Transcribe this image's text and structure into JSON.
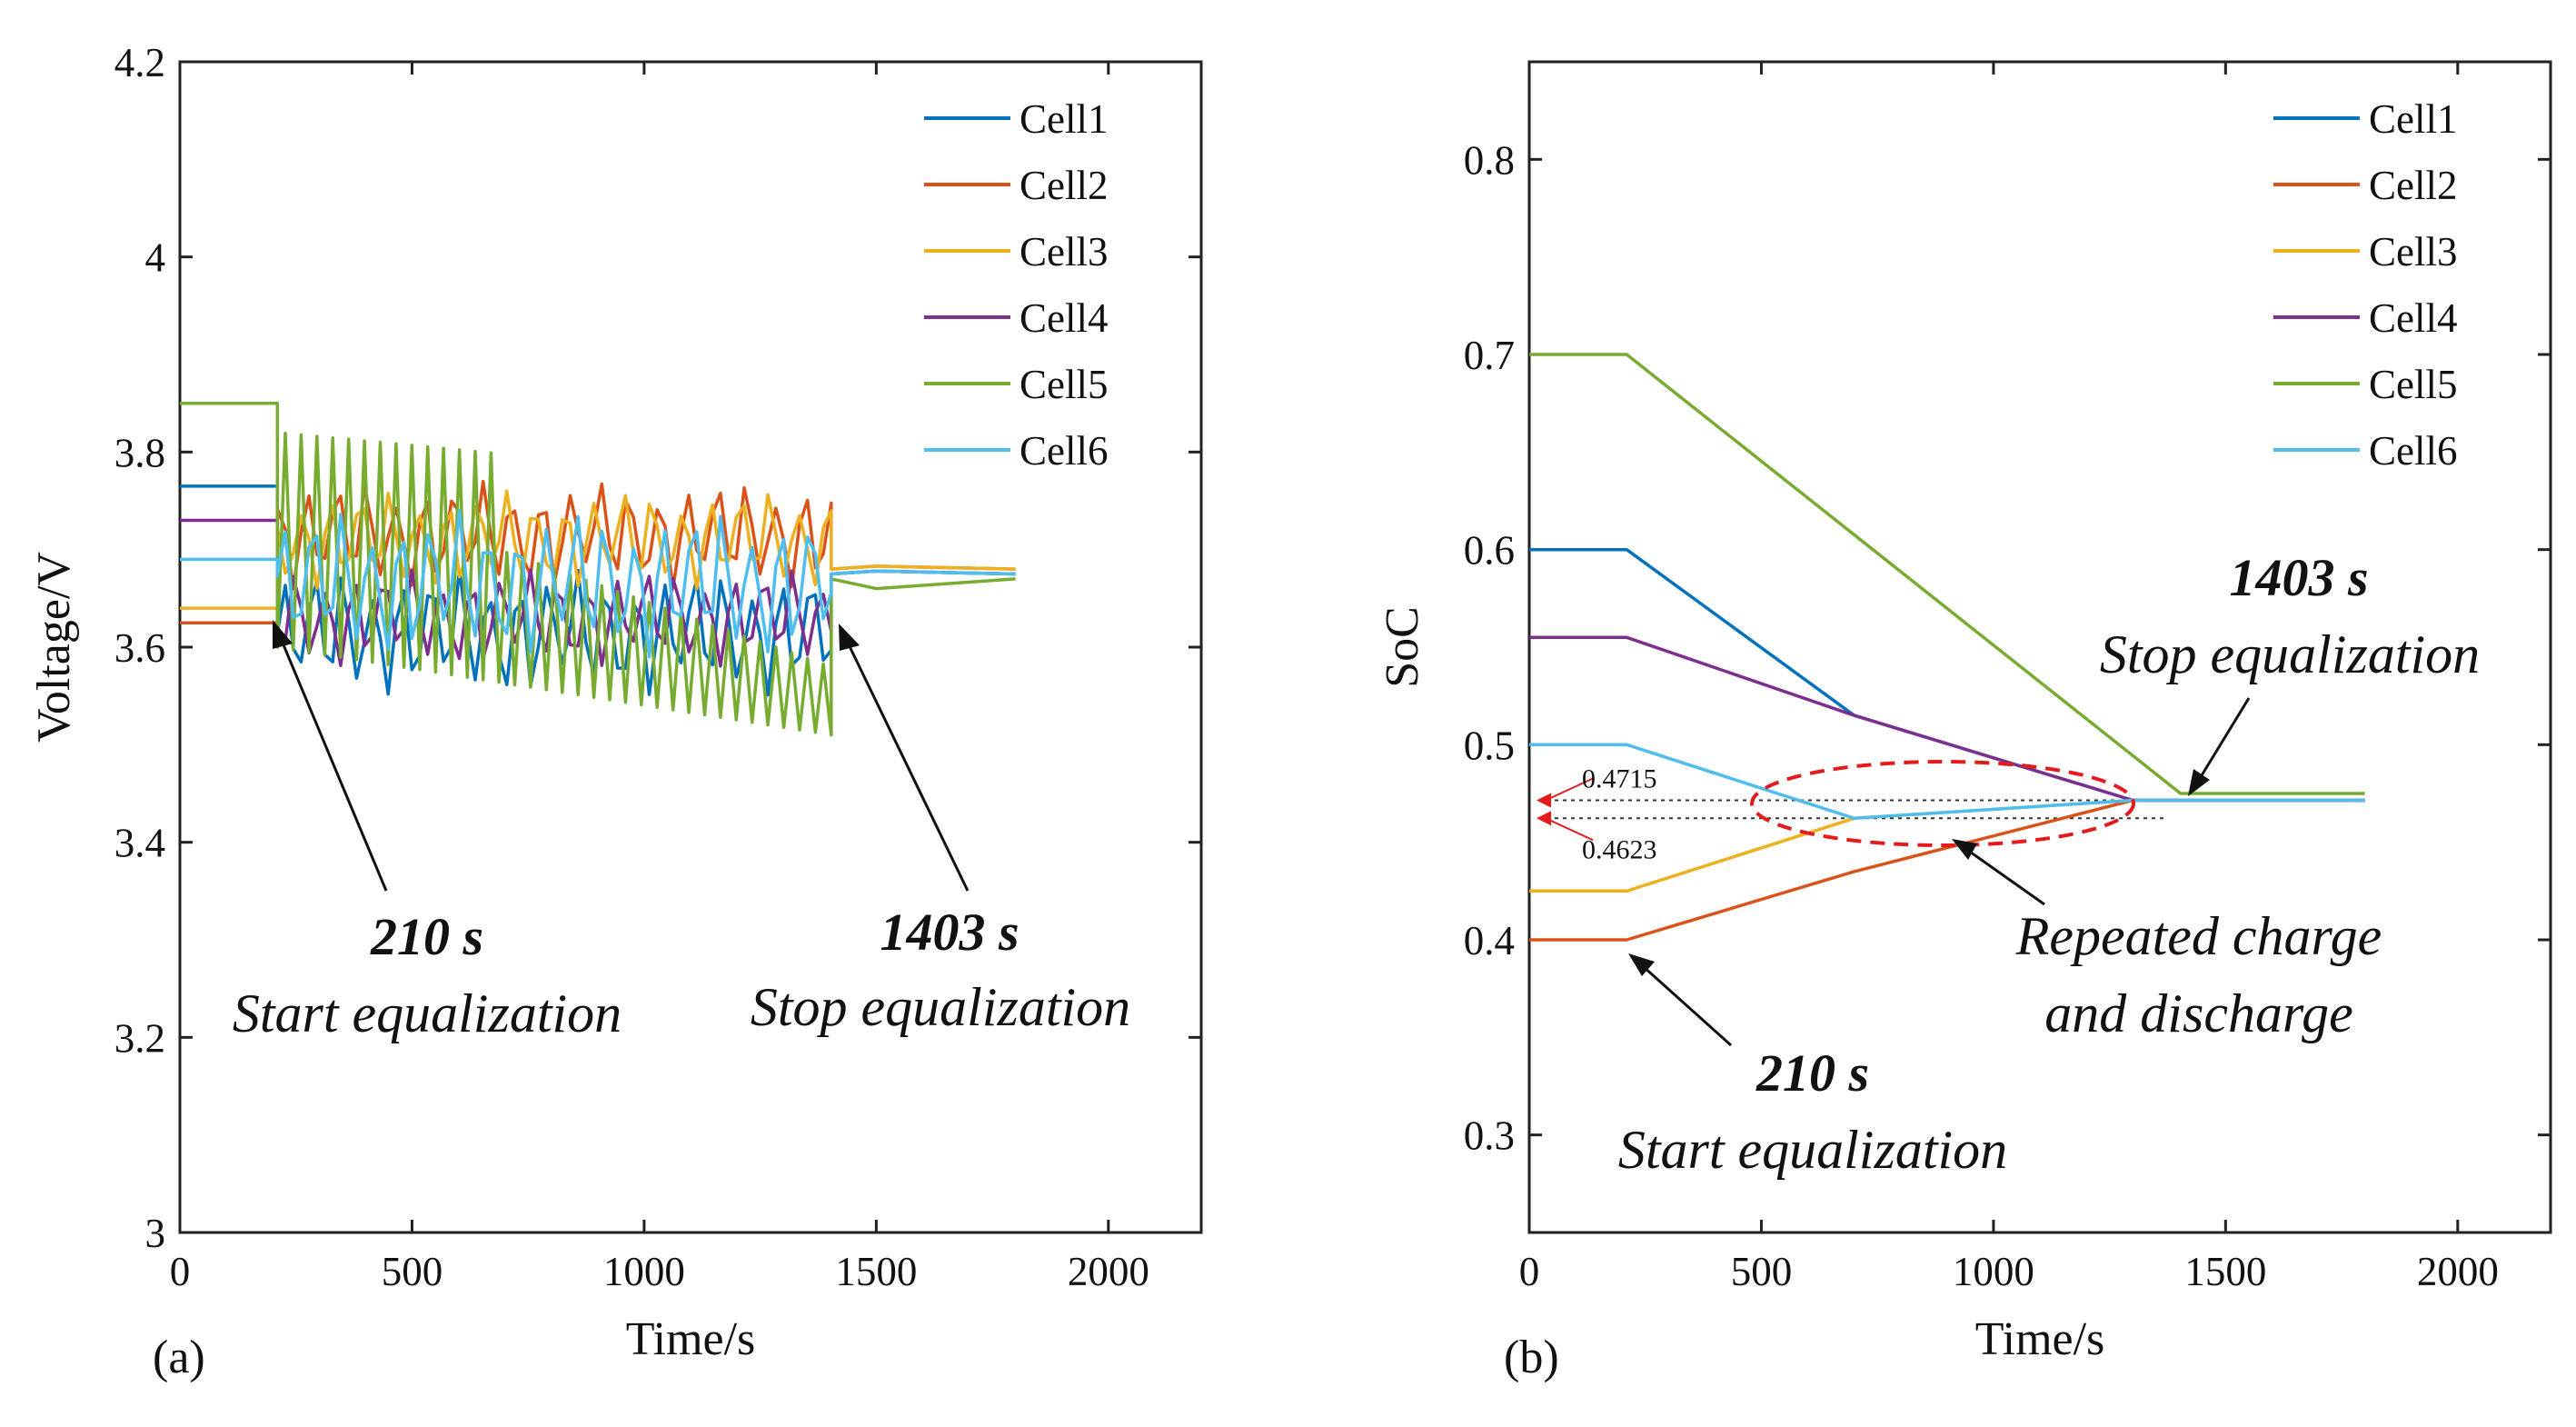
{
  "figure": {
    "panel_a_label": "(a)",
    "panel_b_label": "(b)"
  },
  "colors": {
    "Cell1": "#0072BD",
    "Cell2": "#D95319",
    "Cell3": "#EDB120",
    "Cell4": "#7E2F8E",
    "Cell5": "#77AC30",
    "Cell6": "#4DBEEE",
    "marker": "#E41A1C"
  },
  "chart_data": [
    {
      "type": "line",
      "title": "",
      "xlabel": "Time/s",
      "ylabel": "Voltage/V",
      "xlim": [
        0,
        2200
      ],
      "ylim": [
        3,
        4.2
      ],
      "xticks": [
        0,
        500,
        1000,
        1500,
        2000
      ],
      "yticks": [
        3,
        3.2,
        3.4,
        3.6,
        3.8,
        4,
        4.2
      ],
      "xtick_labels": [
        "0",
        "500",
        "1000",
        "1500",
        "2000"
      ],
      "ytick_labels": [
        "3",
        "3.2",
        "3.4",
        "3.6",
        "3.8",
        "4",
        "4.2"
      ],
      "legend": [
        "Cell1",
        "Cell2",
        "Cell3",
        "Cell4",
        "Cell5",
        "Cell6"
      ],
      "legend_position": "top-right",
      "series": [
        {
          "name": "Cell1",
          "start_value": 3.765,
          "end_value": 3.675,
          "oscillation_range": [
            3.55,
            3.68
          ]
        },
        {
          "name": "Cell2",
          "start_value": 3.625,
          "end_value": 3.68,
          "oscillation_range": [
            3.66,
            3.77
          ]
        },
        {
          "name": "Cell3",
          "start_value": 3.64,
          "end_value": 3.68,
          "oscillation_range": [
            3.66,
            3.76
          ]
        },
        {
          "name": "Cell4",
          "start_value": 3.73,
          "end_value": 3.675,
          "oscillation_range": [
            3.58,
            3.68
          ]
        },
        {
          "name": "Cell5",
          "start_value": 3.85,
          "end_value": 3.67,
          "oscillation_range": [
            3.46,
            3.82
          ]
        },
        {
          "name": "Cell6",
          "start_value": 3.69,
          "end_value": 3.675,
          "oscillation_range": [
            3.59,
            3.74
          ]
        }
      ],
      "annotations": {
        "start_time": "210 s",
        "start_text": "Start equalization",
        "stop_time": "1403 s",
        "stop_text": "Stop equalization"
      }
    },
    {
      "type": "line",
      "title": "",
      "xlabel": "Time/s",
      "ylabel": "SoC",
      "xlim": [
        0,
        2200
      ],
      "ylim": [
        0.25,
        0.85
      ],
      "xticks": [
        0,
        500,
        1000,
        1500,
        2000
      ],
      "yticks": [
        0.3,
        0.4,
        0.5,
        0.6,
        0.7,
        0.8
      ],
      "xtick_labels": [
        "0",
        "500",
        "1000",
        "1500",
        "2000"
      ],
      "ytick_labels": [
        "0.3",
        "0.4",
        "0.5",
        "0.6",
        "0.7",
        "0.8"
      ],
      "legend": [
        "Cell1",
        "Cell2",
        "Cell3",
        "Cell4",
        "Cell5",
        "Cell6"
      ],
      "legend_position": "top-right",
      "series": [
        {
          "name": "Cell1",
          "x": [
            0,
            210,
            700,
            1300,
            1800
          ],
          "y": [
            0.6,
            0.6,
            0.515,
            0.4715,
            0.4715
          ]
        },
        {
          "name": "Cell2",
          "x": [
            0,
            210,
            700,
            1300,
            1800
          ],
          "y": [
            0.4,
            0.4,
            0.435,
            0.4715,
            0.4715
          ]
        },
        {
          "name": "Cell3",
          "x": [
            0,
            210,
            700,
            1300,
            1800
          ],
          "y": [
            0.425,
            0.425,
            0.4623,
            0.4715,
            0.4715
          ]
        },
        {
          "name": "Cell4",
          "x": [
            0,
            210,
            700,
            1300,
            1800
          ],
          "y": [
            0.555,
            0.555,
            0.515,
            0.4715,
            0.4715
          ]
        },
        {
          "name": "Cell5",
          "x": [
            0,
            210,
            1403,
            1800
          ],
          "y": [
            0.7,
            0.7,
            0.475,
            0.475
          ]
        },
        {
          "name": "Cell6",
          "x": [
            0,
            210,
            700,
            1300,
            1800
          ],
          "y": [
            0.5,
            0.5,
            0.4623,
            0.4715,
            0.4715
          ]
        }
      ],
      "reference_lines": [
        {
          "label": "0.4715",
          "y": 0.4715
        },
        {
          "label": "0.4623",
          "y": 0.4623
        }
      ],
      "annotations": {
        "start_time": "210 s",
        "start_text": "Start equalization",
        "stop_time": "1403 s",
        "stop_text": "Stop equalization",
        "repeat_line1": "Repeated charge",
        "repeat_line2": "and discharge"
      }
    }
  ]
}
